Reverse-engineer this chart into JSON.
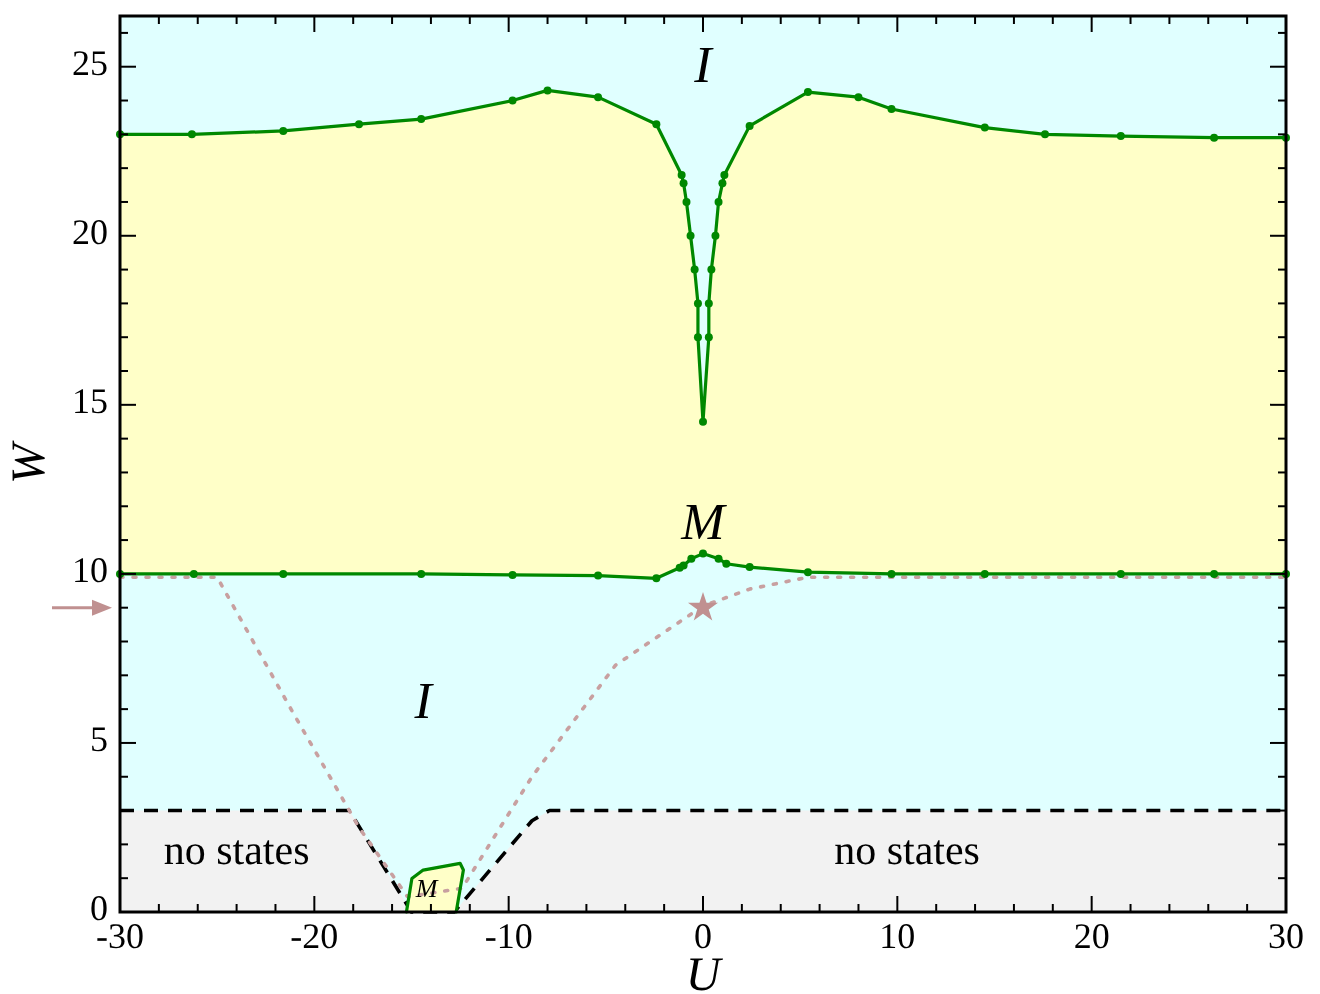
{
  "chart_data": {
    "type": "line",
    "xlabel": "U",
    "ylabel": "W",
    "xlim": [
      -30,
      30
    ],
    "ylim": [
      0,
      26.5
    ],
    "xticks": [
      -30,
      {
        "value": -28,
        "label": null
      },
      {
        "value": -26,
        "label": null
      },
      {
        "value": -24,
        "label": null
      },
      {
        "value": -22,
        "label": null
      },
      -20,
      {
        "value": -18,
        "label": null
      },
      {
        "value": -16,
        "label": null
      },
      {
        "value": -14,
        "label": null
      },
      {
        "value": -12,
        "label": null
      },
      -10,
      {
        "value": -8,
        "label": null
      },
      {
        "value": -6,
        "label": null
      },
      {
        "value": -4,
        "label": null
      },
      {
        "value": -2,
        "label": null
      },
      0,
      {
        "value": 2,
        "label": null
      },
      {
        "value": 4,
        "label": null
      },
      {
        "value": 6,
        "label": null
      },
      {
        "value": 8,
        "label": null
      },
      10,
      {
        "value": 12,
        "label": null
      },
      {
        "value": 14,
        "label": null
      },
      {
        "value": 16,
        "label": null
      },
      {
        "value": 18,
        "label": null
      },
      20,
      {
        "value": 22,
        "label": null
      },
      {
        "value": 24,
        "label": null
      },
      {
        "value": 26,
        "label": null
      },
      {
        "value": 28,
        "label": null
      },
      30
    ],
    "yticks": [
      0,
      {
        "value": 1,
        "label": null
      },
      {
        "value": 2,
        "label": null
      },
      {
        "value": 3,
        "label": null
      },
      {
        "value": 4,
        "label": null
      },
      5,
      {
        "value": 6,
        "label": null
      },
      {
        "value": 7,
        "label": null
      },
      {
        "value": 8,
        "label": null
      },
      {
        "value": 9,
        "label": null
      },
      10,
      {
        "value": 11,
        "label": null
      },
      {
        "value": 12,
        "label": null
      },
      {
        "value": 13,
        "label": null
      },
      {
        "value": 14,
        "label": null
      },
      15,
      {
        "value": 16,
        "label": null
      },
      {
        "value": 17,
        "label": null
      },
      {
        "value": 18,
        "label": null
      },
      {
        "value": 19,
        "label": null
      },
      20,
      {
        "value": 21,
        "label": null
      },
      {
        "value": 22,
        "label": null
      },
      {
        "value": 23,
        "label": null
      },
      {
        "value": 24,
        "label": null
      },
      25,
      {
        "value": 26,
        "label": null
      }
    ],
    "grid": false,
    "bands": [
      {
        "axis": "y",
        "from": 0,
        "to": 26.5,
        "color": "#e0ffff"
      }
    ],
    "series": [
      {
        "type": "area",
        "color": "#f2f2f2",
        "line_style": "dashed",
        "x": [
          -30,
          -18.2,
          -15,
          -12.8,
          -8.8,
          -7.9,
          30
        ],
        "values": [
          3,
          3,
          0,
          0,
          2.7,
          3,
          3
        ]
      },
      {
        "color": "#c8a0a0",
        "line_style": "dotted",
        "marker": "none",
        "x": [
          -30,
          -25,
          -21.2,
          -17.7,
          -15.2,
          -12.4,
          -8.8,
          -4.5,
          0,
          2.4,
          5.4,
          30
        ],
        "values": [
          9.9,
          9.9,
          6,
          2.5,
          0.45,
          0.7,
          4,
          7.3,
          9.05,
          9.55,
          9.9,
          9.9
        ]
      },
      {
        "color": "#008800",
        "line_style": "solid",
        "marker": "circle",
        "x": [
          -30,
          -26.3,
          -21.6,
          -17.7,
          -14.5,
          -9.8,
          -8,
          -5.4,
          -2.4,
          -1.1,
          -1,
          -0.85,
          -0.64,
          -0.43,
          -0.26,
          -0.26,
          0,
          0.3,
          0.3,
          0.43,
          0.64,
          0.8,
          1,
          1.1,
          2.4,
          5.4,
          8,
          9.7,
          14.5,
          17.6,
          21.5,
          26.3,
          30
        ],
        "values": [
          23,
          23,
          23.1,
          23.3,
          23.45,
          24,
          24.3,
          24.1,
          23.3,
          21.8,
          21.55,
          21,
          20,
          19,
          18,
          17,
          14.5,
          17,
          18,
          19,
          20,
          21,
          21.55,
          21.8,
          23.25,
          24.25,
          24.1,
          23.75,
          23.2,
          23,
          22.95,
          22.9,
          22.9
        ]
      },
      {
        "color": "#008800",
        "line_style": "solid",
        "marker": "circle",
        "x": [
          -30,
          -26.2,
          -21.6,
          -14.5,
          -9.8,
          -5.4,
          -2.4,
          -1.2,
          -1,
          -0.6,
          0,
          0.8,
          1.2,
          2.4,
          5.4,
          9.7,
          14.5,
          21.5,
          26.3,
          30
        ],
        "values": [
          10,
          10,
          10,
          10,
          9.97,
          9.95,
          9.87,
          10.18,
          10.25,
          10.45,
          10.6,
          10.45,
          10.3,
          10.2,
          10.05,
          10,
          10,
          10,
          10,
          10
        ]
      },
      {
        "color": "#008800",
        "line_style": "solid",
        "marker": "none",
        "x": [
          -15.26,
          -14.98,
          -14.4,
          -12.5,
          -12.33,
          -12.7
        ],
        "values": [
          0,
          0.99,
          1.24,
          1.44,
          1.24,
          0
        ]
      },
      {
        "type": "scatter",
        "color": "#c09090",
        "marker": "star",
        "x": [
          0
        ],
        "values": [
          9
        ]
      }
    ],
    "annotations": [
      "I",
      "M",
      "I",
      "M",
      "no states",
      "no states"
    ]
  }
}
